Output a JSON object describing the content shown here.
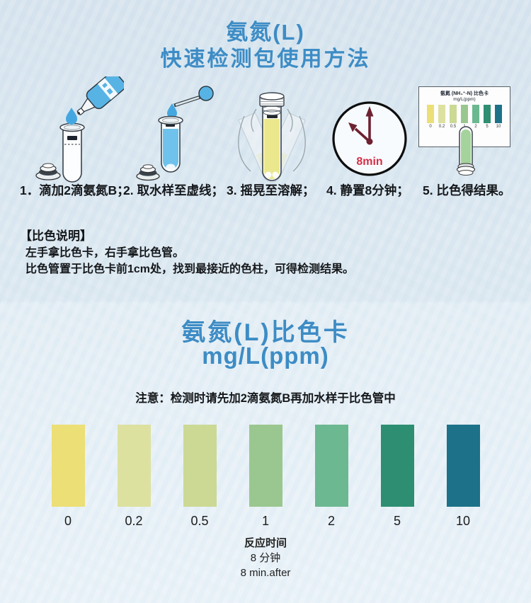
{
  "colors": {
    "title_blue": "#3d8cc5",
    "text_dark": "#15181b",
    "reagent_blue": "#58b3e5",
    "drop_blue": "#45a7e0",
    "sample_blue": "#6fc2ec",
    "liquid_yellow": "#ebe78d",
    "result_green": "#a4d39c",
    "clock_red": "#d63048",
    "hand_maroon": "#6e2130",
    "outline_dark": "#39424a"
  },
  "header": {
    "title_line1": "氨氮(L)",
    "title_line2": "快速检测包使用方法"
  },
  "steps": [
    {
      "caption": "1．滴加2滴氨氮B；"
    },
    {
      "caption": "2. 取水样至虚线；"
    },
    {
      "caption": "3. 摇晃至溶解；"
    },
    {
      "caption": "4. 静置8分钟；"
    },
    {
      "caption": "5. 比色得结果。"
    }
  ],
  "clock": {
    "label": "8min"
  },
  "mini_card": {
    "title_line1": "氨氮 (NH₄⁺-N) 比色卡",
    "title_line2": "mg/L(ppm)"
  },
  "instructions": {
    "heading": "【比色说明】",
    "line1": "左手拿比色卡，右手拿比色管。",
    "line2": "比色管置于比色卡前1cm处，找到最接近的色柱，可得检测结果。"
  },
  "color_card": {
    "title_line1": "氨氮(L)比色卡",
    "title_line2": "mg/L(ppm)",
    "note": "注意：检测时请先加2滴氨氮B再加水样于比色管中",
    "swatches": [
      {
        "value": "0",
        "color": "#ecdf76"
      },
      {
        "value": "0.2",
        "color": "#dde1a0"
      },
      {
        "value": "0.5",
        "color": "#cbd995"
      },
      {
        "value": "1",
        "color": "#9ac78f"
      },
      {
        "value": "2",
        "color": "#6cb890"
      },
      {
        "value": "5",
        "color": "#2e8e71"
      },
      {
        "value": "10",
        "color": "#1d7289"
      }
    ],
    "footer_line1": "反应时间",
    "footer_line2": "8 分钟",
    "footer_line3": "8 min.after"
  }
}
